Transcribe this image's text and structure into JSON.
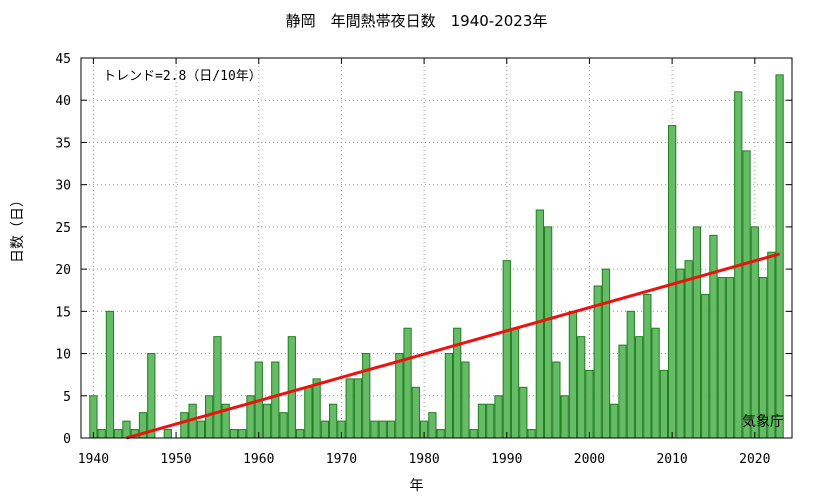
{
  "chart_data": {
    "type": "bar",
    "title": "静岡　年間熱帯夜日数　1940-2023年",
    "xlabel": "年",
    "ylabel": "日数（日）",
    "x": [
      1940,
      1941,
      1942,
      1943,
      1944,
      1945,
      1946,
      1947,
      1948,
      1949,
      1950,
      1951,
      1952,
      1953,
      1954,
      1955,
      1956,
      1957,
      1958,
      1959,
      1960,
      1961,
      1962,
      1963,
      1964,
      1965,
      1966,
      1967,
      1968,
      1969,
      1970,
      1971,
      1972,
      1973,
      1974,
      1975,
      1976,
      1977,
      1978,
      1979,
      1980,
      1981,
      1982,
      1983,
      1984,
      1985,
      1986,
      1987,
      1988,
      1989,
      1990,
      1991,
      1992,
      1993,
      1994,
      1995,
      1996,
      1997,
      1998,
      1999,
      2000,
      2001,
      2002,
      2003,
      2004,
      2005,
      2006,
      2007,
      2008,
      2009,
      2010,
      2011,
      2012,
      2013,
      2014,
      2015,
      2016,
      2017,
      2018,
      2019,
      2020,
      2021,
      2022,
      2023
    ],
    "values": [
      5,
      1,
      15,
      1,
      2,
      1,
      3,
      10,
      0,
      1,
      0,
      3,
      4,
      2,
      5,
      12,
      4,
      1,
      1,
      5,
      9,
      4,
      9,
      3,
      12,
      1,
      6,
      7,
      2,
      4,
      2,
      7,
      7,
      10,
      2,
      2,
      2,
      10,
      13,
      6,
      2,
      3,
      1,
      10,
      13,
      9,
      1,
      4,
      4,
      5,
      21,
      13,
      6,
      1,
      27,
      25,
      9,
      5,
      15,
      12,
      8,
      18,
      20,
      4,
      11,
      15,
      12,
      17,
      13,
      8,
      37,
      20,
      21,
      25,
      17,
      24,
      19,
      19,
      41,
      34,
      25,
      19,
      22,
      43
    ],
    "xticks": [
      1940,
      1950,
      1960,
      1970,
      1980,
      1990,
      2000,
      2010,
      2020
    ],
    "yticks": [
      0,
      5,
      10,
      15,
      20,
      25,
      30,
      35,
      40,
      45
    ],
    "ylim": [
      0,
      45
    ],
    "trend": {
      "label": "トレンド=2.8（日/10年）",
      "start": [
        1944,
        0.0
      ],
      "end": [
        2023,
        21.8
      ]
    },
    "source_label": "気象庁",
    "bar_fill": "#66bb66",
    "bar_stroke": "#1f7f1f",
    "trend_color": "#ee1111",
    "grid": true
  }
}
